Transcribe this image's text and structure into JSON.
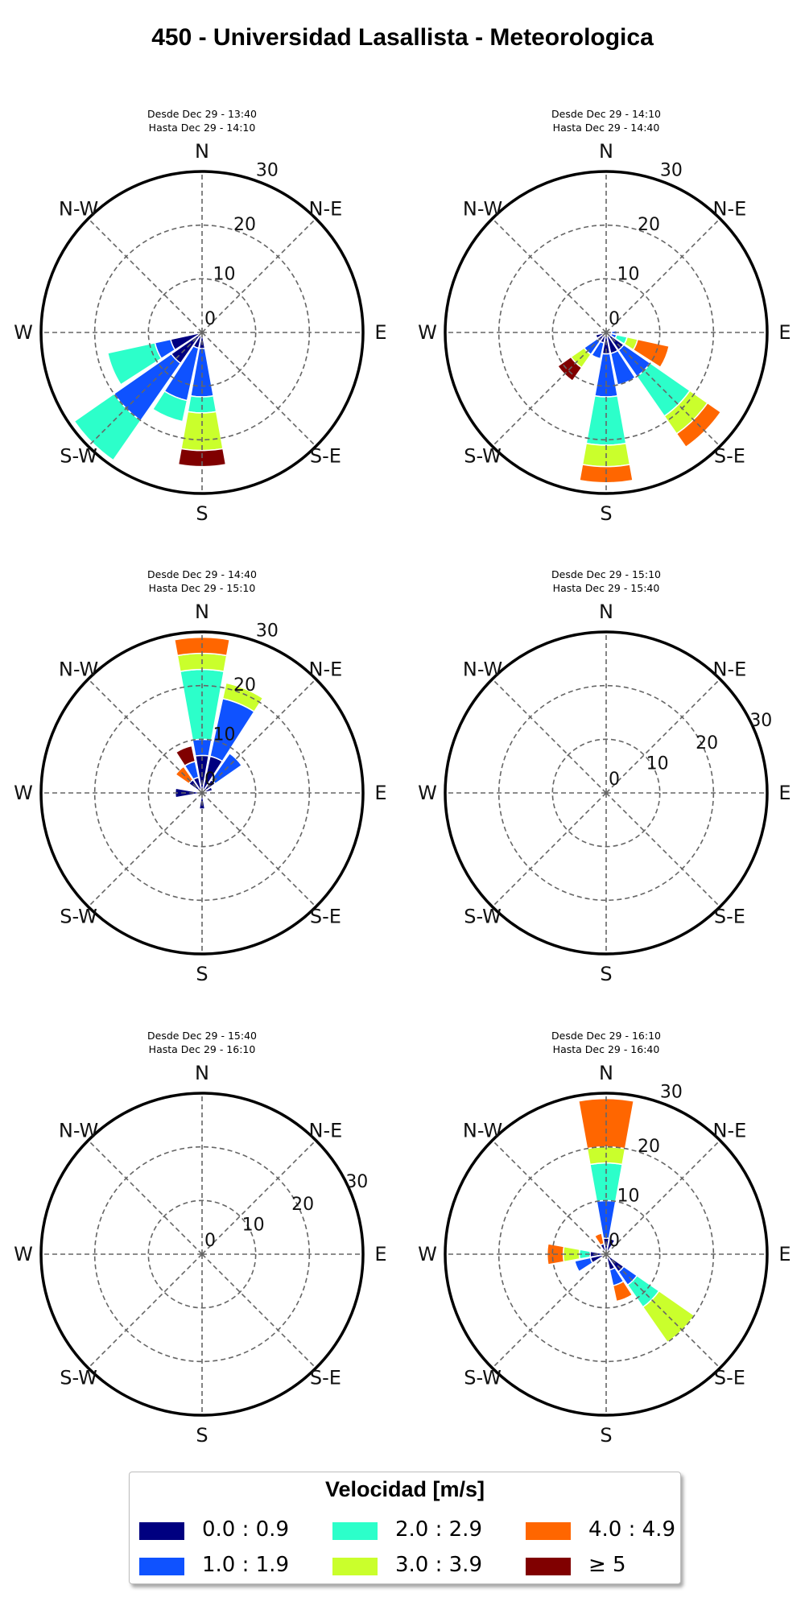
{
  "title": "450 - Universidad Lasallista - Meteorologica",
  "legend": {
    "title": "Velocidad [m/s]",
    "items": [
      {
        "label": "0.0 : 0.9",
        "color": "#000080"
      },
      {
        "label": "1.0 : 1.9",
        "color": "#0F52FF"
      },
      {
        "label": "2.0 : 2.9",
        "color": "#2CFFCA"
      },
      {
        "label": "3.0 : 3.9",
        "color": "#CAFF2C"
      },
      {
        "label": "4.0 : 4.9",
        "color": "#FF6600"
      },
      {
        "label": "≥  5",
        "color": "#800000"
      }
    ]
  },
  "chart_data": [
    {
      "type": "windrose",
      "period": [
        "Desde Dec 29 - 13:40",
        "Hasta Dec 29 - 14:10"
      ],
      "directions": [
        "N",
        "N-E",
        "E",
        "S-E",
        "S",
        "S-W",
        "W",
        "N-W"
      ],
      "radial_ticks": [
        0,
        10,
        20,
        30
      ],
      "rmax": 30,
      "petals": [
        {
          "angle": 180,
          "stacks": [
            3,
            9,
            3,
            7,
            0,
            3
          ]
        },
        {
          "angle": 202.5,
          "stacks": [
            3,
            10,
            4,
            0,
            0,
            0
          ]
        },
        {
          "angle": 225,
          "stacks": [
            7,
            13,
            9,
            0,
            0,
            0
          ]
        },
        {
          "angle": 247.5,
          "stacks": [
            6,
            3,
            9,
            0,
            0,
            0
          ]
        },
        {
          "angle": 270,
          "stacks": [
            0,
            0,
            0,
            0,
            0,
            0
          ]
        },
        {
          "angle": 292.5,
          "stacks": [
            0,
            0,
            0,
            0,
            0,
            0
          ]
        },
        {
          "angle": 315,
          "stacks": [
            0,
            0,
            0,
            0,
            0,
            0
          ]
        },
        {
          "angle": 337.5,
          "stacks": [
            0,
            0,
            0,
            0,
            0,
            0
          ]
        }
      ]
    },
    {
      "type": "windrose",
      "period": [
        "Desde Dec 29 - 14:10",
        "Hasta Dec 29 - 14:40"
      ],
      "directions": [
        "N",
        "N-E",
        "E",
        "S-E",
        "S",
        "S-W",
        "W",
        "N-W"
      ],
      "radial_ticks": [
        0,
        10,
        20,
        30
      ],
      "rmax": 30,
      "petals": [
        {
          "angle": 90,
          "stacks": [
            1,
            1,
            0,
            0,
            0,
            0
          ]
        },
        {
          "angle": 112.5,
          "stacks": [
            1,
            1,
            2,
            2,
            6,
            0
          ]
        },
        {
          "angle": 135,
          "stacks": [
            4,
            6,
            9,
            4,
            3,
            0
          ]
        },
        {
          "angle": 157.5,
          "stacks": [
            4,
            6,
            0,
            0,
            0,
            0
          ]
        },
        {
          "angle": 180,
          "stacks": [
            4,
            8,
            9,
            4,
            3,
            0
          ]
        },
        {
          "angle": 202.5,
          "stacks": [
            2,
            3,
            0,
            0,
            0,
            0
          ]
        },
        {
          "angle": 225,
          "stacks": [
            2,
            3,
            0,
            3,
            0,
            3
          ]
        },
        {
          "angle": 247.5,
          "stacks": [
            2,
            0,
            0,
            0,
            0,
            0
          ]
        }
      ]
    },
    {
      "type": "windrose",
      "period": [
        "Desde Dec 29 - 14:40",
        "Hasta Dec 29 - 15:10"
      ],
      "directions": [
        "N",
        "N-E",
        "E",
        "S-E",
        "S",
        "S-W",
        "W",
        "N-W"
      ],
      "radial_ticks": [
        0,
        10,
        20,
        30
      ],
      "rmax": 30,
      "petals": [
        {
          "angle": 0,
          "stacks": [
            7,
            3,
            13,
            3,
            3,
            0
          ]
        },
        {
          "angle": 22.5,
          "stacks": [
            7,
            11,
            0,
            3,
            0,
            0
          ]
        },
        {
          "angle": 45,
          "stacks": [
            3,
            6,
            0,
            0,
            0,
            0
          ]
        },
        {
          "angle": 67.5,
          "stacks": [
            2,
            0,
            0,
            0,
            0,
            0
          ]
        },
        {
          "angle": 180,
          "stacks": [
            3,
            0,
            0,
            0,
            0,
            0
          ]
        },
        {
          "angle": 270,
          "stacks": [
            5,
            0,
            0,
            0,
            0,
            0
          ]
        },
        {
          "angle": 315,
          "stacks": [
            3,
            0,
            0,
            0,
            3,
            0
          ]
        },
        {
          "angle": 337.5,
          "stacks": [
            3,
            3,
            0,
            0,
            0,
            3
          ]
        }
      ]
    },
    {
      "type": "windrose",
      "period": [
        "Desde Dec 29 - 15:10",
        "Hasta Dec 29 - 15:40"
      ],
      "directions": [
        "N",
        "N-E",
        "E",
        "S-E",
        "S",
        "S-W",
        "W",
        "N-W"
      ],
      "radial_ticks": [
        0,
        10,
        20,
        30
      ],
      "rmax": 30,
      "petals": []
    },
    {
      "type": "windrose",
      "period": [
        "Desde Dec 29 - 15:40",
        "Hasta Dec 29 - 16:10"
      ],
      "directions": [
        "N",
        "N-E",
        "E",
        "S-E",
        "S",
        "S-W",
        "W",
        "N-W"
      ],
      "radial_ticks": [
        0,
        10,
        20,
        30
      ],
      "rmax": 30,
      "petals": []
    },
    {
      "type": "windrose",
      "period": [
        "Desde Dec 29 - 16:10",
        "Hasta Dec 29 - 16:40"
      ],
      "directions": [
        "N",
        "N-E",
        "E",
        "S-E",
        "S",
        "S-W",
        "W",
        "N-W"
      ],
      "radial_ticks": [
        0,
        10,
        20,
        30
      ],
      "rmax": 30,
      "petals": [
        {
          "angle": 0,
          "stacks": [
            3,
            7,
            7,
            3,
            9,
            0
          ]
        },
        {
          "angle": 22.5,
          "stacks": [
            3,
            0,
            0,
            0,
            0,
            0
          ]
        },
        {
          "angle": 135,
          "stacks": [
            4,
            3,
            5,
            8,
            0,
            0
          ]
        },
        {
          "angle": 157.5,
          "stacks": [
            3,
            3,
            0,
            0,
            3,
            0
          ]
        },
        {
          "angle": 247.5,
          "stacks": [
            3,
            3,
            0,
            0,
            0,
            0
          ]
        },
        {
          "angle": 270,
          "stacks": [
            3,
            0,
            2,
            3,
            3,
            0
          ]
        },
        {
          "angle": 337.5,
          "stacks": [
            2,
            0,
            0,
            0,
            2,
            0
          ]
        }
      ]
    }
  ]
}
